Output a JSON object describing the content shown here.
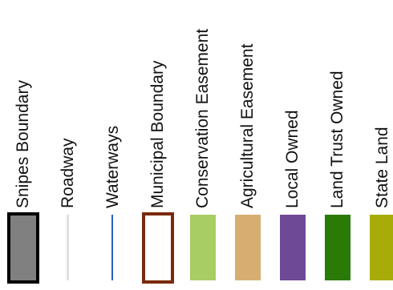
{
  "legend": {
    "items": [
      {
        "label": "Snipes Boundary",
        "swatch": "boundary",
        "fill": "#808080",
        "stroke": "#000000"
      },
      {
        "label": "Roadway",
        "swatch": "line",
        "fill": "#e0e0e0"
      },
      {
        "label": "Waterways",
        "swatch": "line",
        "fill": "#2a5fc8"
      },
      {
        "label": "Municipal Boundary",
        "swatch": "outline",
        "stroke": "#7a2a0c"
      },
      {
        "label": "Conservation Easement",
        "swatch": "fill",
        "fill": "#a8cd64"
      },
      {
        "label": "Agricultural Easement",
        "swatch": "fill",
        "fill": "#d6ae72"
      },
      {
        "label": "Local Owned",
        "swatch": "fill",
        "fill": "#6e4a95"
      },
      {
        "label": "Land Trust Owned",
        "swatch": "fill",
        "fill": "#2a7a08"
      },
      {
        "label": "State Land",
        "swatch": "fill",
        "fill": "#a8ac08"
      }
    ]
  }
}
